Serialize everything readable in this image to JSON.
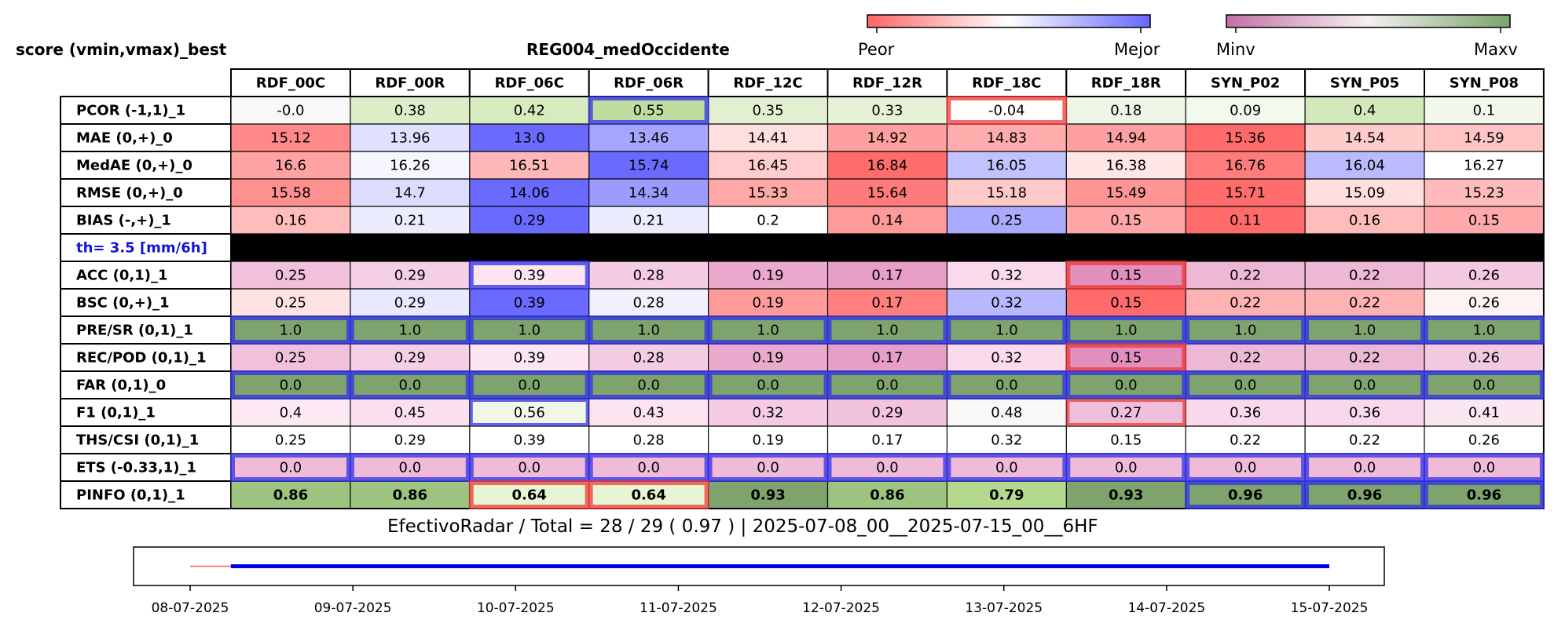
{
  "header": {
    "score_title": "score (vmin,vmax)_best",
    "region": "REG004_medOccidente"
  },
  "colorbars": {
    "score": {
      "left": "Peor",
      "right": "Mejor",
      "stops": [
        "#ff6666",
        "#ffffff",
        "#6666ff"
      ]
    },
    "value": {
      "left": "Minv",
      "right": "Maxv",
      "stops": [
        "#c46fa6",
        "#f4f0f0",
        "#7aa36a"
      ]
    }
  },
  "colors": {
    "green_dark": "#7fa36d",
    "green_mid": "#9cc47e",
    "green_light": "#c8e4a8",
    "pink": "#e79bc4",
    "blue_box": "#3030e8",
    "red_box": "#f03a3a",
    "threshold_text": "#1515d8",
    "timeline_red": "#ff5a5a",
    "timeline_blue": "#0000ee"
  },
  "chart_data": {
    "type": "table",
    "columns": [
      "RDF_00C",
      "RDF_00R",
      "RDF_06C",
      "RDF_06R",
      "RDF_12C",
      "RDF_12R",
      "RDF_18C",
      "RDF_18R",
      "SYN_P02",
      "SYN_P05",
      "SYN_P08"
    ],
    "rows": [
      {
        "label": "PCOR (-1,1)_1",
        "values": [
          "-0.0",
          "0.38",
          "0.42",
          "0.55",
          "0.35",
          "0.33",
          "-0.04",
          "0.18",
          "0.09",
          "0.4",
          "0.1"
        ]
      },
      {
        "label": "MAE (0,+)_0",
        "values": [
          "15.12",
          "13.96",
          "13.0",
          "13.46",
          "14.41",
          "14.92",
          "14.83",
          "14.94",
          "15.36",
          "14.54",
          "14.59"
        ]
      },
      {
        "label": "MedAE (0,+)_0",
        "values": [
          "16.6",
          "16.26",
          "16.51",
          "15.74",
          "16.45",
          "16.84",
          "16.05",
          "16.38",
          "16.76",
          "16.04",
          "16.27"
        ]
      },
      {
        "label": "RMSE (0,+)_0",
        "values": [
          "15.58",
          "14.7",
          "14.06",
          "14.34",
          "15.33",
          "15.64",
          "15.18",
          "15.49",
          "15.71",
          "15.09",
          "15.23"
        ]
      },
      {
        "label": "BIAS (-,+)_1",
        "values": [
          "0.16",
          "0.21",
          "0.29",
          "0.21",
          "0.2",
          "0.14",
          "0.25",
          "0.15",
          "0.11",
          "0.16",
          "0.15"
        ]
      },
      {
        "label": "th= 3.5 [mm/6h]",
        "threshold": true
      },
      {
        "label": "ACC (0,1)_1",
        "values": [
          "0.25",
          "0.29",
          "0.39",
          "0.28",
          "0.19",
          "0.17",
          "0.32",
          "0.15",
          "0.22",
          "0.22",
          "0.26"
        ]
      },
      {
        "label": "BSC (0,+)_1",
        "values": [
          "0.25",
          "0.29",
          "0.39",
          "0.28",
          "0.19",
          "0.17",
          "0.32",
          "0.15",
          "0.22",
          "0.22",
          "0.26"
        ]
      },
      {
        "label": "PRE/SR (0,1)_1",
        "values": [
          "1.0",
          "1.0",
          "1.0",
          "1.0",
          "1.0",
          "1.0",
          "1.0",
          "1.0",
          "1.0",
          "1.0",
          "1.0"
        ]
      },
      {
        "label": "REC/POD (0,1)_1",
        "values": [
          "0.25",
          "0.29",
          "0.39",
          "0.28",
          "0.19",
          "0.17",
          "0.32",
          "0.15",
          "0.22",
          "0.22",
          "0.26"
        ]
      },
      {
        "label": "FAR (0,1)_0",
        "values": [
          "0.0",
          "0.0",
          "0.0",
          "0.0",
          "0.0",
          "0.0",
          "0.0",
          "0.0",
          "0.0",
          "0.0",
          "0.0"
        ]
      },
      {
        "label": "F1 (0,1)_1",
        "values": [
          "0.4",
          "0.45",
          "0.56",
          "0.43",
          "0.32",
          "0.29",
          "0.48",
          "0.27",
          "0.36",
          "0.36",
          "0.41"
        ]
      },
      {
        "label": "THS/CSI (0,1)_1",
        "values": [
          "0.25",
          "0.29",
          "0.39",
          "0.28",
          "0.19",
          "0.17",
          "0.32",
          "0.15",
          "0.22",
          "0.22",
          "0.26"
        ]
      },
      {
        "label": "ETS (-0.33,1)_1",
        "values": [
          "0.0",
          "0.0",
          "0.0",
          "0.0",
          "0.0",
          "0.0",
          "0.0",
          "0.0",
          "0.0",
          "0.0",
          "0.0"
        ]
      },
      {
        "label": "PINFO (0,1)_1",
        "values": [
          "0.86",
          "0.86",
          "0.64",
          "0.64",
          "0.93",
          "0.86",
          "0.79",
          "0.93",
          "0.96",
          "0.96",
          "0.96"
        ],
        "bold": true
      }
    ],
    "cell_colors": [
      [
        "#f8f8f8",
        "#ddedc8",
        "#d6ebbe",
        "#bedd9f",
        "#e2f0d1",
        "#e6f2d6",
        "#ffffff",
        "#eef6e6",
        "#f4f9ee",
        "#d3e9bc",
        "#f3f8ec"
      ],
      [
        "#ff8888",
        "#e0e0ff",
        "#6a6aff",
        "#a6a6ff",
        "#ffdede",
        "#ffa0a0",
        "#ffacac",
        "#ffa0a0",
        "#ff6a6a",
        "#ffcccc",
        "#ffc4c4"
      ],
      [
        "#ffa2a2",
        "#f6f6ff",
        "#ffb7b7",
        "#6a6aff",
        "#ffcdcd",
        "#ff6c6c",
        "#c2c2ff",
        "#ffe6e6",
        "#ff7c7c",
        "#babaff",
        "#ffffff"
      ],
      [
        "#ff9090",
        "#dcdcff",
        "#6a6aff",
        "#9c9cff",
        "#ffa8a8",
        "#ff7a7a",
        "#ffc9c9",
        "#ff9494",
        "#ff6c6c",
        "#ffdede",
        "#ffbbbb"
      ],
      [
        "#ffbcbc",
        "#ececff",
        "#6a6aff",
        "#ececff",
        "#ffffff",
        "#ff9a9a",
        "#aaaaff",
        "#ffa6a6",
        "#ff6a6a",
        "#ffbcbc",
        "#ffaaaa"
      ],
      null,
      [
        "#f0c0dc",
        "#f5cfe5",
        "#fde6f2",
        "#f4cce3",
        "#eba9cd",
        "#e79ec7",
        "#f9dbec",
        "#e38fbd",
        "#edb8d6",
        "#edb8d6",
        "#f3c9e1"
      ],
      [
        "#ffe2e2",
        "#e8e8ff",
        "#6a6aff",
        "#f0f0ff",
        "#ff9a9a",
        "#ff7e7e",
        "#b8b8ff",
        "#ff6a6a",
        "#ffb2b2",
        "#ffb2b2",
        "#fff2f2"
      ],
      [
        "#7fa36d",
        "#7fa36d",
        "#7fa36d",
        "#7fa36d",
        "#7fa36d",
        "#7fa36d",
        "#7fa36d",
        "#7fa36d",
        "#7fa36d",
        "#7fa36d",
        "#7fa36d"
      ],
      [
        "#f0c0dc",
        "#f5cfe5",
        "#fde6f2",
        "#f4cce3",
        "#eba9cd",
        "#e79ec7",
        "#f9dbec",
        "#e38fbd",
        "#edb8d6",
        "#edb8d6",
        "#f3c9e1"
      ],
      [
        "#7fa36d",
        "#7fa36d",
        "#7fa36d",
        "#7fa36d",
        "#7fa36d",
        "#7fa36d",
        "#7fa36d",
        "#7fa36d",
        "#7fa36d",
        "#7fa36d",
        "#7fa36d"
      ],
      [
        "#fde9f3",
        "#fae0ee",
        "#f1f7e8",
        "#fbe4f0",
        "#f4cbe2",
        "#f2c3de",
        "#f9f7f8",
        "#f0bfdb",
        "#f8d8ea",
        "#f8d8ea",
        "#fbe7f2"
      ],
      [
        "#ffffff",
        "#ffffff",
        "#ffffff",
        "#ffffff",
        "#ffffff",
        "#ffffff",
        "#ffffff",
        "#ffffff",
        "#ffffff",
        "#ffffff",
        "#ffffff"
      ],
      [
        "#efbbd9",
        "#efbbd9",
        "#efbbd9",
        "#efbbd9",
        "#efbbd9",
        "#efbbd9",
        "#efbbd9",
        "#efbbd9",
        "#efbbd9",
        "#efbbd9",
        "#efbbd9"
      ],
      [
        "#9cc47e",
        "#9cc47e",
        "#e6f5d2",
        "#e6f5d2",
        "#7fa36d",
        "#9cc47e",
        "#b4d88e",
        "#7fa36d",
        "#7fa36d",
        "#7fa36d",
        "#7fa36d"
      ]
    ],
    "highlights": [
      {
        "row": 0,
        "col": 3,
        "kind": "best",
        "weight": "thick"
      },
      {
        "row": 0,
        "col": 6,
        "kind": "worst",
        "weight": "thick"
      },
      {
        "row": 6,
        "col": 2,
        "kind": "best",
        "weight": "thick"
      },
      {
        "row": 6,
        "col": 7,
        "kind": "worst",
        "weight": "thick"
      },
      {
        "row": 8,
        "cols": [
          0,
          1,
          2,
          3,
          4,
          5,
          6,
          7,
          8,
          9,
          10
        ],
        "kind": "best",
        "weight": "thick"
      },
      {
        "row": 9,
        "col": 7,
        "kind": "worst",
        "weight": "thick"
      },
      {
        "row": 10,
        "cols": [
          0,
          1,
          2,
          3,
          4,
          5,
          6,
          7,
          8,
          9,
          10
        ],
        "kind": "best",
        "weight": "thick"
      },
      {
        "row": 11,
        "col": 2,
        "kind": "best",
        "weight": "thin"
      },
      {
        "row": 11,
        "col": 7,
        "kind": "worst",
        "weight": "thin"
      },
      {
        "row": 13,
        "cols": [
          0,
          1,
          2,
          3,
          4,
          5,
          6,
          7,
          8,
          9,
          10
        ],
        "kind": "best",
        "weight": "thick"
      },
      {
        "row": 14,
        "cols": [
          2,
          3
        ],
        "kind": "worst",
        "weight": "thick"
      },
      {
        "row": 14,
        "cols": [
          8,
          9,
          10
        ],
        "kind": "best",
        "weight": "thick"
      }
    ],
    "summary": "EfectivoRadar / Total  =  28 / 29 ( 0.97 ) | 2025-07-08_00__2025-07-15_00__6HF",
    "timeline": {
      "ticks": [
        "08-07-2025",
        "09-07-2025",
        "10-07-2025",
        "11-07-2025",
        "12-07-2025",
        "13-07-2025",
        "14-07-2025",
        "15-07-2025"
      ],
      "start_day": 0,
      "end_day": 7,
      "red_segment": [
        0,
        0.25
      ],
      "blue_segment": [
        0.25,
        7
      ]
    }
  }
}
